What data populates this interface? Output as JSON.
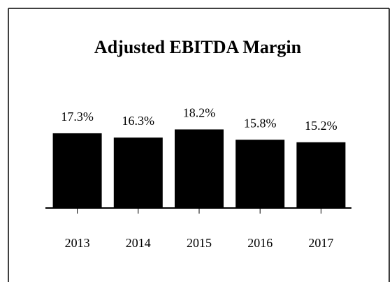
{
  "chart_data": {
    "type": "bar",
    "title": "Adjusted EBITDA Margin",
    "categories": [
      "2013",
      "2014",
      "2015",
      "2016",
      "2017"
    ],
    "values": [
      17.3,
      16.3,
      18.2,
      15.8,
      15.2
    ],
    "value_labels": [
      "17.3%",
      "16.3%",
      "18.2%",
      "15.8%",
      "15.2%"
    ],
    "color": "#000000"
  }
}
